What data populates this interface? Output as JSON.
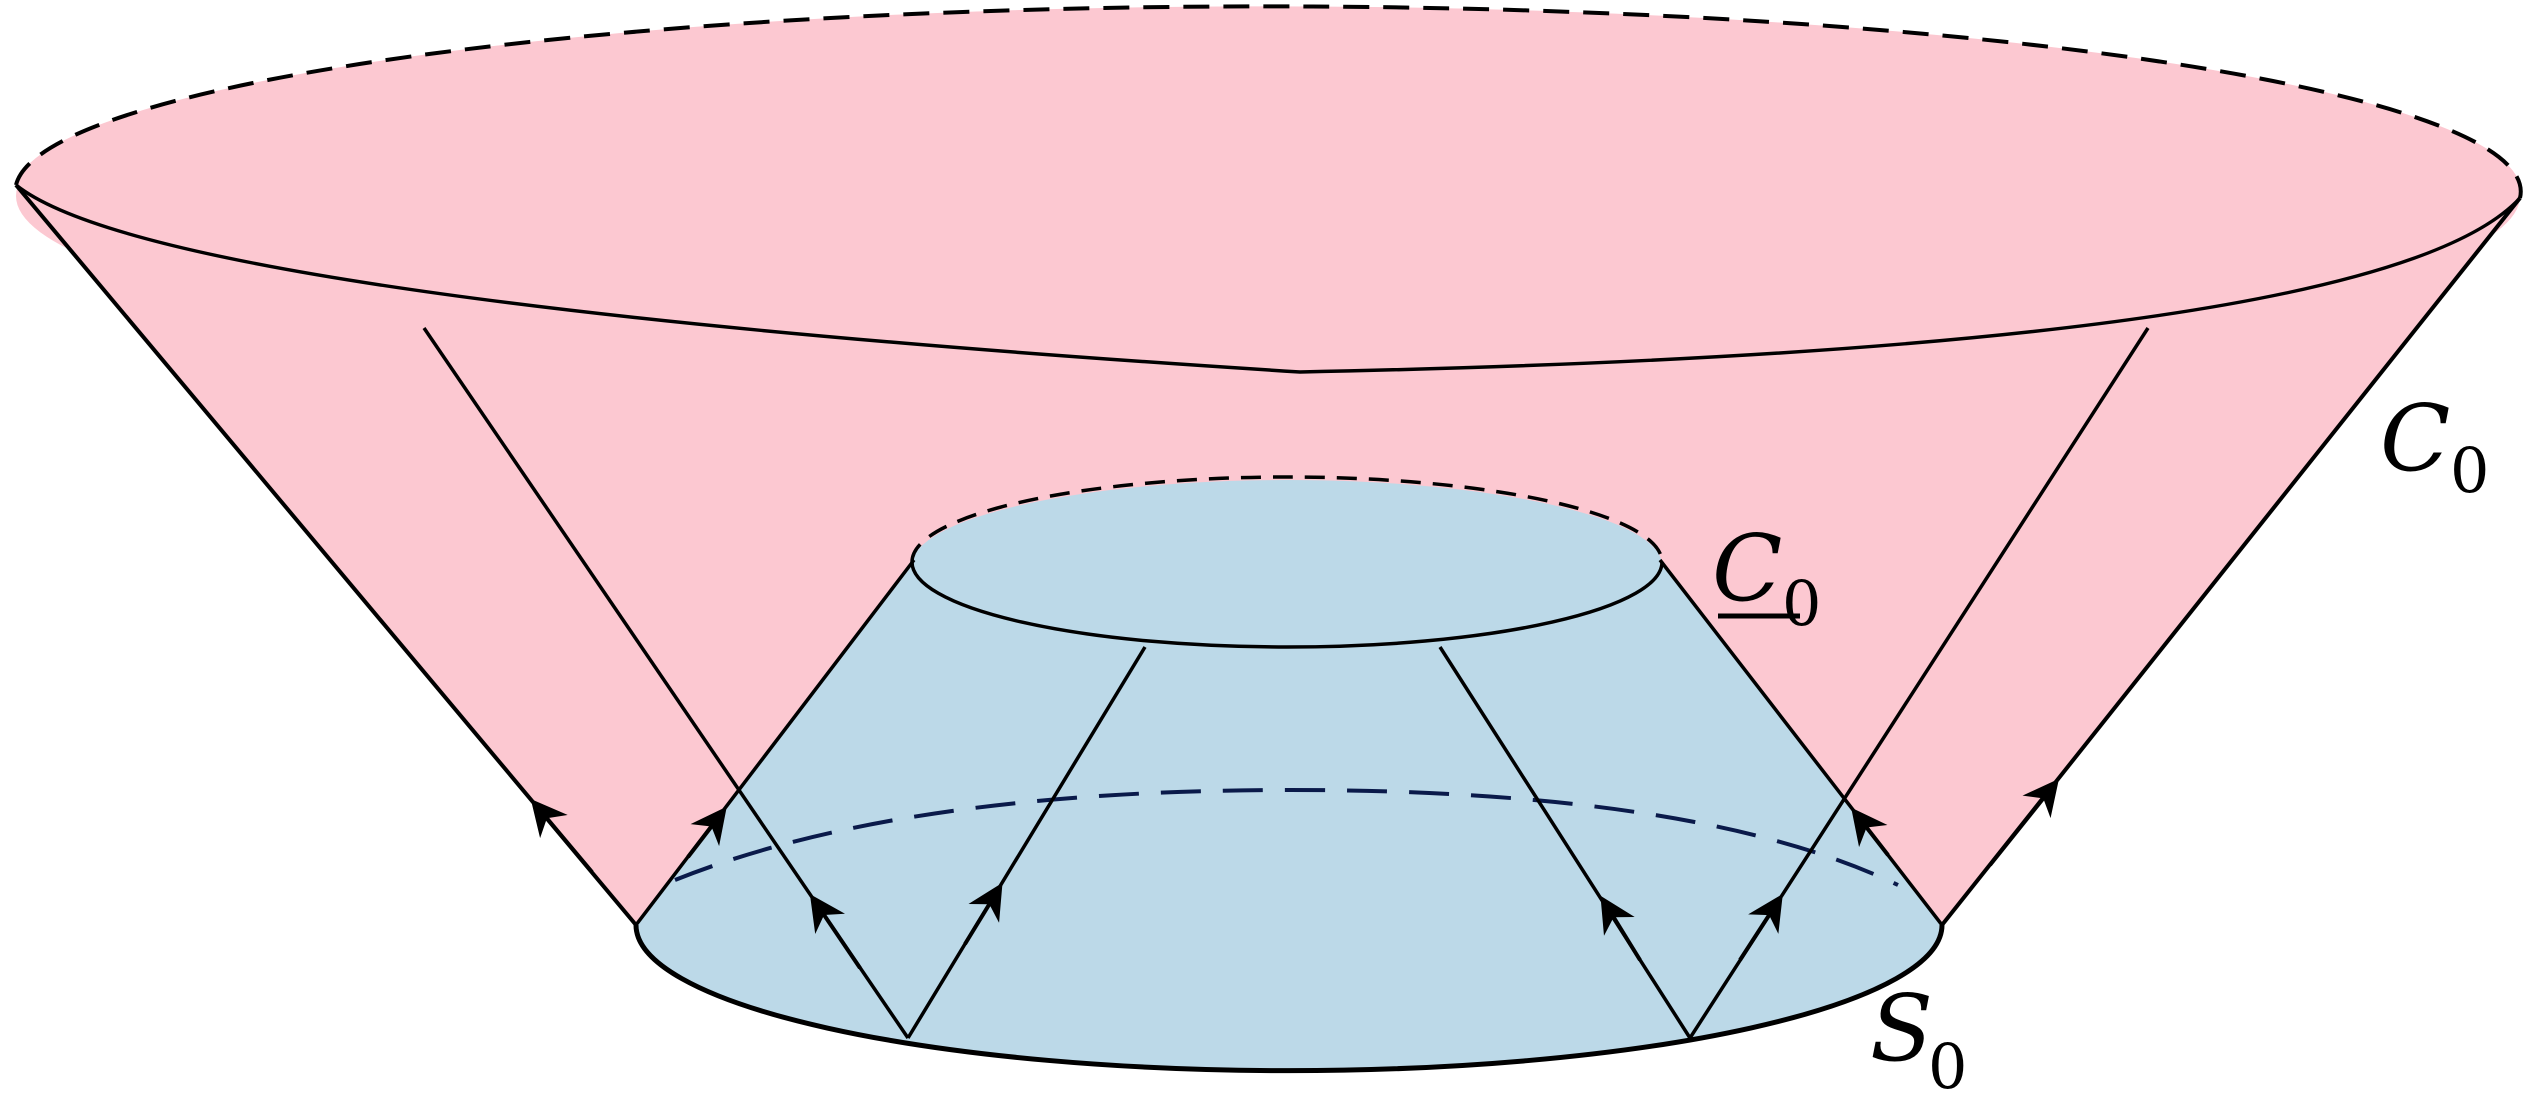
{
  "labels": {
    "outer_cone": {
      "main": "C",
      "sub": "0"
    },
    "inner_cone": {
      "main": "C",
      "sub": "0",
      "underlined": true
    },
    "base_surface": {
      "main": "S",
      "sub": "0"
    }
  },
  "colors": {
    "outer_cone_fill": "#fcc8d1",
    "inner_cone_fill": "#bcd9e8",
    "stroke": "#000000",
    "dashed_inner_stroke": "#0a1a4a"
  }
}
